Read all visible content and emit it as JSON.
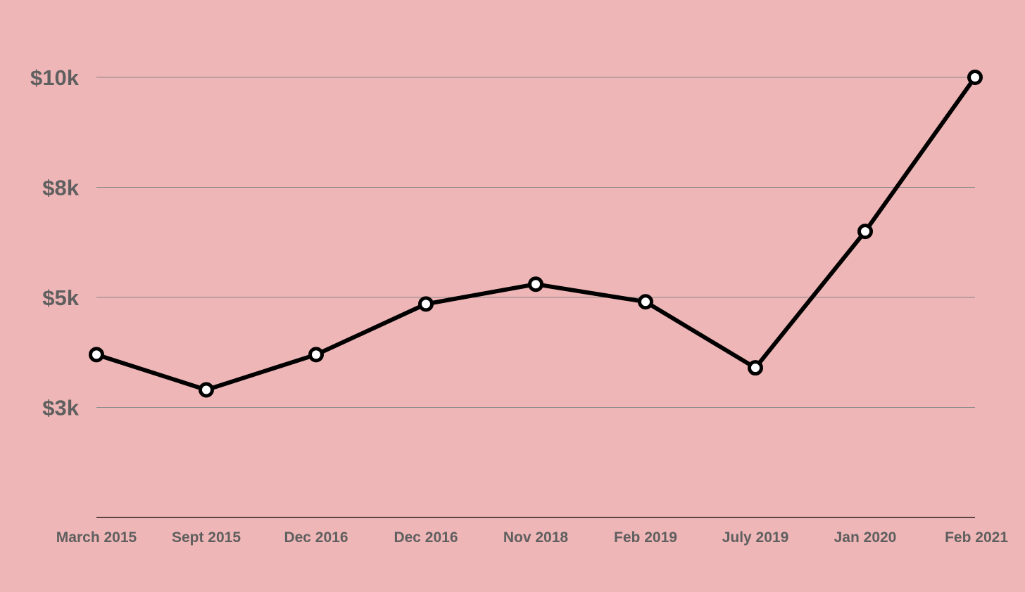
{
  "chart_data": {
    "type": "line",
    "title": "",
    "xlabel": "",
    "ylabel": "",
    "categories": [
      "March 2015",
      "Sept 2015",
      "Dec 2016",
      "Dec 2016",
      "Nov 2018",
      "Feb 2019",
      "July 2019",
      "Jan 2020",
      "Feb 2021"
    ],
    "series": [
      {
        "values": [
          3700,
          2900,
          3700,
          4850,
          5300,
          4900,
          3400,
          6500,
          10000
        ]
      }
    ],
    "ylim": [
      0,
      10000
    ],
    "yticks": [
      {
        "value": 2500,
        "label": "$3k"
      },
      {
        "value": 5000,
        "label": "$5k"
      },
      {
        "value": 7500,
        "label": "$8k"
      },
      {
        "value": 10000,
        "label": "$10k"
      }
    ],
    "grid": true,
    "legend": "none",
    "colors": {
      "background": "#EFB6B7",
      "line": "#000000",
      "marker_fill": "#FFFFFF",
      "grid": "#8a8a8a",
      "tick_text": "#5f5f5f"
    }
  }
}
